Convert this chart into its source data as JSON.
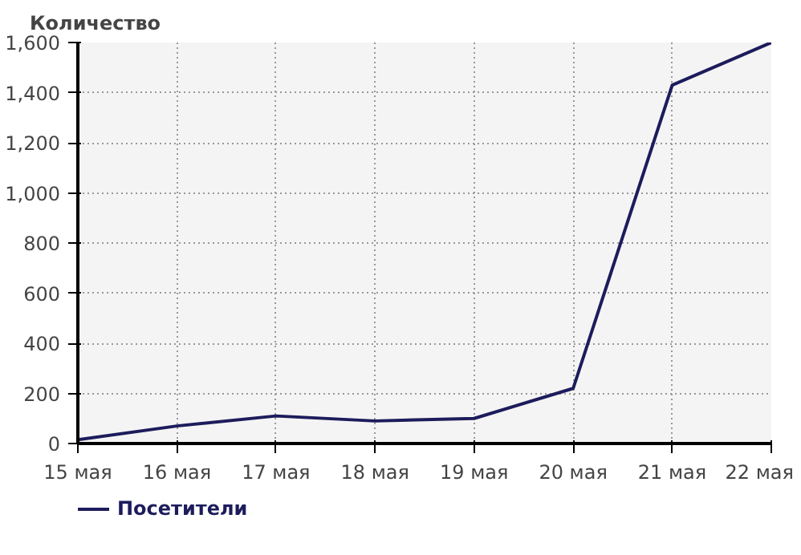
{
  "chart_data": {
    "type": "line",
    "ylabel": "Количество",
    "categories": [
      "15 мая",
      "16 мая",
      "17 мая",
      "18 мая",
      "19 мая",
      "20 мая",
      "21 мая",
      "22 мая"
    ],
    "series": [
      {
        "name": "Посетители",
        "color": "#1c1c5c",
        "values": [
          15,
          70,
          110,
          90,
          100,
          220,
          1430,
          1600
        ]
      }
    ],
    "ylim": [
      0,
      1600
    ],
    "yticks": [
      0,
      {
        "value": 200,
        "label": "200"
      },
      {
        "value": 400,
        "label": "400"
      },
      {
        "value": 600,
        "label": "600"
      },
      {
        "value": 800,
        "label": "800"
      },
      {
        "value": 1000,
        "label": "1,000"
      },
      {
        "value": 1200,
        "label": "1,200"
      },
      {
        "value": 1400,
        "label": "1,400"
      },
      {
        "value": 1600,
        "label": "1,600"
      }
    ],
    "grid": true,
    "legend": "bottom left",
    "marker": "none",
    "line_style": "solid"
  }
}
